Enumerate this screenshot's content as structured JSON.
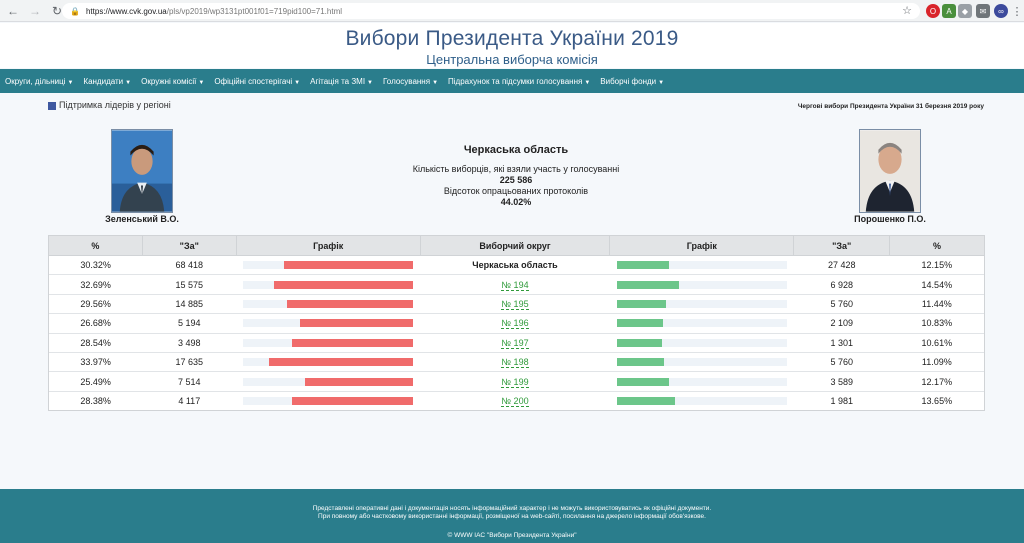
{
  "browser": {
    "url_host": "https://www.cvk.gov.ua",
    "url_path": "/pls/vp2019/wp3131pt001f01=719pid100=71.html"
  },
  "header": {
    "title": "Вибори Президента України 2019",
    "subtitle": "Центральна виборча комісія"
  },
  "menu": [
    "Округи, дільниці",
    "Кандидати",
    "Окружні комісії",
    "Офіційні спостерігачі",
    "Агітація та ЗМІ",
    "Голосування",
    "Підрахунок та підсумки голосування",
    "Виборчі фонди"
  ],
  "legend_label": "Підтримка лідерів у регіоні",
  "election_date": "Чергові вибори Президента України 31 березня 2019 року",
  "candidates": {
    "left": "Зеленський В.О.",
    "right": "Порошенко П.О."
  },
  "summary": {
    "region": "Черкаська область",
    "turnout_label": "Кількість виборців, які взяли участь у голосуванні",
    "turnout_value": "225 586",
    "protocols_label": "Відсоток опрацьованих протоколів",
    "protocols_value": "44.02%"
  },
  "table": {
    "headers": [
      "%",
      "\"За\"",
      "Графік",
      "Виборчий округ",
      "Графік",
      "\"За\"",
      "%"
    ],
    "rows": [
      {
        "left_pct": "30.32%",
        "left_votes": "68 418",
        "left_share": 0.3032,
        "district": "Черкаська область",
        "is_total": true,
        "right_votes": "27 428",
        "right_pct": "12.15%",
        "right_share": 0.1215
      },
      {
        "left_pct": "32.69%",
        "left_votes": "15 575",
        "left_share": 0.3269,
        "district": "№ 194",
        "is_total": false,
        "right_votes": "6 928",
        "right_pct": "14.54%",
        "right_share": 0.1454
      },
      {
        "left_pct": "29.56%",
        "left_votes": "14 885",
        "left_share": 0.2956,
        "district": "№ 195",
        "is_total": false,
        "right_votes": "5 760",
        "right_pct": "11.44%",
        "right_share": 0.1144
      },
      {
        "left_pct": "26.68%",
        "left_votes": "5 194",
        "left_share": 0.2668,
        "district": "№ 196",
        "is_total": false,
        "right_votes": "2 109",
        "right_pct": "10.83%",
        "right_share": 0.1083
      },
      {
        "left_pct": "28.54%",
        "left_votes": "3 498",
        "left_share": 0.2854,
        "district": "№ 197",
        "is_total": false,
        "right_votes": "1 301",
        "right_pct": "10.61%",
        "right_share": 0.1061
      },
      {
        "left_pct": "33.97%",
        "left_votes": "17 635",
        "left_share": 0.3397,
        "district": "№ 198",
        "is_total": false,
        "right_votes": "5 760",
        "right_pct": "11.09%",
        "right_share": 0.1109
      },
      {
        "left_pct": "25.49%",
        "left_votes": "7 514",
        "left_share": 0.2549,
        "district": "№ 199",
        "is_total": false,
        "right_votes": "3 589",
        "right_pct": "12.17%",
        "right_share": 0.1217
      },
      {
        "left_pct": "28.38%",
        "left_votes": "4 117",
        "left_share": 0.2838,
        "district": "№ 200",
        "is_total": false,
        "right_votes": "1 981",
        "right_pct": "13.65%",
        "right_share": 0.1365
      }
    ]
  },
  "footer": {
    "line1": "Представлені оперативні дані і документація носять інформаційний характер і не можуть використовуватись як офіційні документи.",
    "line2": "При повному або частковому використанні інформації, розміщеної на web-сайті, посилання на джерело інформації обов'язкове.",
    "copyright": "© WWW IAC \"Вибори Президента України\""
  },
  "colors": {
    "menu_bg": "#2a7d8c",
    "left_bar": "#f06b6b",
    "right_bar": "#6cc68a",
    "title": "#3a5a86"
  },
  "icons": [
    "back-arrow-icon",
    "forward-arrow-icon",
    "reload-icon",
    "lock-icon",
    "star-icon",
    "menu-kebab-icon"
  ]
}
